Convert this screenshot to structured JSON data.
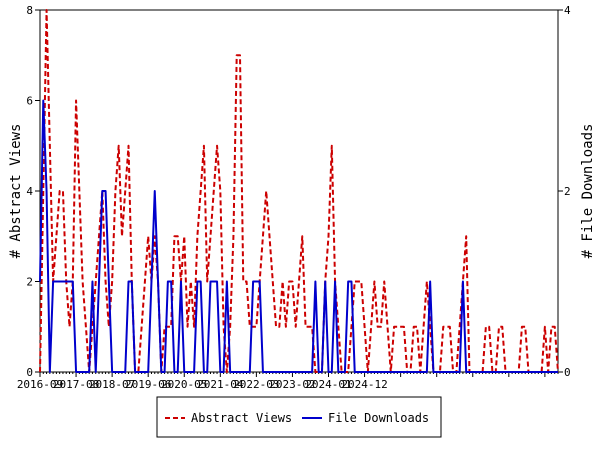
{
  "chart_data": {
    "type": "line",
    "x_ticks": [
      "2016-09",
      "2017-08",
      "2018-07",
      "2019-06",
      "2020-05",
      "2021-04",
      "2022-03",
      "2023-02",
      "2024-01",
      "2024-12"
    ],
    "y_left": {
      "label": "# Abstract Views",
      "min": 0,
      "max": 8,
      "ticks": [
        "0",
        "2",
        "4",
        "6",
        "8"
      ]
    },
    "y_right": {
      "label": "# File Downloads",
      "min": 0,
      "max": 4,
      "ticks": [
        "0",
        "2",
        "4"
      ]
    },
    "grid": false,
    "legend_position": "bottom",
    "series": [
      {
        "name": "Abstract Views",
        "color": "#cc0000",
        "style": "dashed",
        "axis": "left",
        "values": [
          0,
          4,
          8,
          5,
          2,
          3,
          4,
          4,
          2,
          1,
          2,
          6,
          4,
          2,
          1,
          0,
          1,
          2,
          3,
          4,
          2,
          1,
          2,
          4,
          5,
          3,
          4,
          5,
          2,
          0,
          0,
          1,
          2,
          3,
          2,
          3,
          2,
          0,
          1,
          1,
          1,
          3,
          3,
          2,
          3,
          1,
          2,
          1,
          3,
          4,
          5,
          2,
          3,
          4,
          5,
          4,
          1,
          0,
          1,
          3,
          7,
          7,
          2,
          2,
          1,
          1,
          1,
          2,
          3,
          4,
          3,
          2,
          1,
          1,
          2,
          1,
          2,
          2,
          1,
          2,
          3,
          1,
          1,
          1,
          0,
          0,
          0,
          2,
          3,
          5,
          2,
          1,
          0,
          0,
          0,
          1,
          2,
          2,
          2,
          1,
          0,
          1,
          2,
          1,
          1,
          2,
          1,
          0,
          1,
          1,
          1,
          1,
          0,
          0,
          1,
          1,
          0,
          1,
          2,
          1,
          0,
          0,
          0,
          1,
          1,
          1,
          0,
          0,
          1,
          2,
          3,
          0,
          0,
          0,
          0,
          0,
          1,
          1,
          0,
          0,
          1,
          1,
          0,
          0,
          0,
          0,
          0,
          1,
          1,
          0,
          0,
          0,
          0,
          0,
          1,
          0,
          1,
          1,
          0
        ]
      },
      {
        "name": "File Downloads",
        "color": "#0000cc",
        "style": "solid",
        "axis": "right",
        "values": [
          1,
          3,
          2,
          0,
          1,
          1,
          1,
          1,
          1,
          1,
          1,
          0,
          0,
          0,
          0,
          0,
          1,
          0,
          1,
          2,
          2,
          1,
          0,
          0,
          0,
          0,
          0,
          1,
          1,
          0,
          0,
          0,
          0,
          0,
          1,
          2,
          1,
          0,
          0,
          1,
          1,
          0,
          0,
          1,
          0,
          0,
          0,
          0,
          1,
          1,
          0,
          0,
          1,
          1,
          1,
          0,
          0,
          1,
          0,
          0,
          0,
          0,
          0,
          0,
          0,
          1,
          1,
          1,
          0,
          0,
          0,
          0,
          0,
          0,
          0,
          0,
          0,
          0,
          0,
          0,
          0,
          0,
          0,
          0,
          1,
          0,
          0,
          1,
          0,
          0,
          1,
          0,
          0,
          0,
          1,
          1,
          0,
          0,
          0,
          0,
          0,
          0,
          0,
          0,
          0,
          0,
          0,
          0,
          0,
          0,
          0,
          0,
          0,
          0,
          0,
          0,
          0,
          0,
          0,
          1,
          0,
          0,
          0,
          0,
          0,
          0,
          0,
          0,
          0,
          1,
          0,
          0,
          0,
          0,
          0,
          0,
          0,
          0,
          0,
          0,
          0,
          0,
          0,
          0,
          0,
          0,
          0,
          0,
          0,
          0,
          0,
          0,
          0,
          0,
          0,
          0,
          0,
          0,
          0
        ]
      }
    ]
  }
}
